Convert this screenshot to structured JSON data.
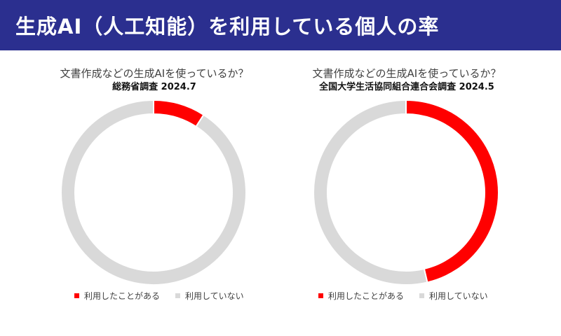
{
  "header": {
    "title": "生成AI（人工知能）を利用している個人の率"
  },
  "colors": {
    "header_bg": "#2b2f8f",
    "used": "#ff0000",
    "not_used": "#d9d9d9"
  },
  "chart_data": [
    {
      "type": "donut",
      "title": "文書作成などの生成AIを使っているか？",
      "subtitle": "総務省調査 2024.7",
      "categories": [
        "利用したことがある",
        "利用していない"
      ],
      "values": [
        9.1,
        90.9
      ],
      "colors": [
        "#ff0000",
        "#d9d9d9"
      ],
      "legend_position": "bottom"
    },
    {
      "type": "donut",
      "title": "文書作成などの生成AIを使っているか？",
      "subtitle": "全国大学生活協同組合連合会調査 2024.5",
      "categories": [
        "利用したことがある",
        "利用していない"
      ],
      "values": [
        46.3,
        53.7
      ],
      "colors": [
        "#ff0000",
        "#d9d9d9"
      ],
      "legend_position": "bottom"
    }
  ]
}
